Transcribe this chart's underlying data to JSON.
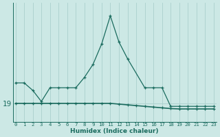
{
  "xlabel": "Humidex (Indice chaleur)",
  "background_color": "#cce8e5",
  "line_color": "#1a6b5e",
  "grid_color": "#aad0cc",
  "x_values": [
    0,
    1,
    2,
    3,
    4,
    5,
    6,
    7,
    8,
    9,
    10,
    11,
    12,
    13,
    14,
    15,
    16,
    17,
    18,
    19,
    20,
    21,
    22,
    23
  ],
  "curve1_x": [
    0,
    1,
    2,
    3,
    4,
    5,
    6,
    7,
    8,
    9,
    10,
    11,
    12,
    13,
    15,
    16,
    17,
    18,
    19,
    20,
    21,
    22,
    23
  ],
  "curve1_y": [
    19.55,
    19.55,
    19.35,
    19.05,
    19.42,
    19.42,
    19.42,
    19.42,
    19.7,
    20.05,
    20.6,
    21.35,
    20.65,
    20.2,
    19.42,
    19.42,
    19.42,
    18.92,
    18.92,
    18.92,
    18.92,
    18.92,
    18.92
  ],
  "curve2_x": [
    0,
    1,
    2,
    3,
    4,
    5,
    6,
    7,
    8,
    9,
    10,
    11,
    12,
    13,
    14,
    15,
    16,
    17,
    18,
    19,
    20,
    21,
    22,
    23
  ],
  "curve2_y": [
    19.0,
    19.0,
    19.0,
    19.0,
    19.0,
    19.0,
    19.0,
    19.0,
    19.0,
    19.0,
    19.0,
    19.0,
    18.98,
    18.96,
    18.94,
    18.92,
    18.9,
    18.88,
    18.86,
    18.85,
    18.85,
    18.85,
    18.85,
    18.85
  ],
  "ytick_values": [
    19.0
  ],
  "ytick_labels": [
    "19"
  ],
  "ylim": [
    18.5,
    21.7
  ],
  "xlim": [
    -0.3,
    23.3
  ]
}
